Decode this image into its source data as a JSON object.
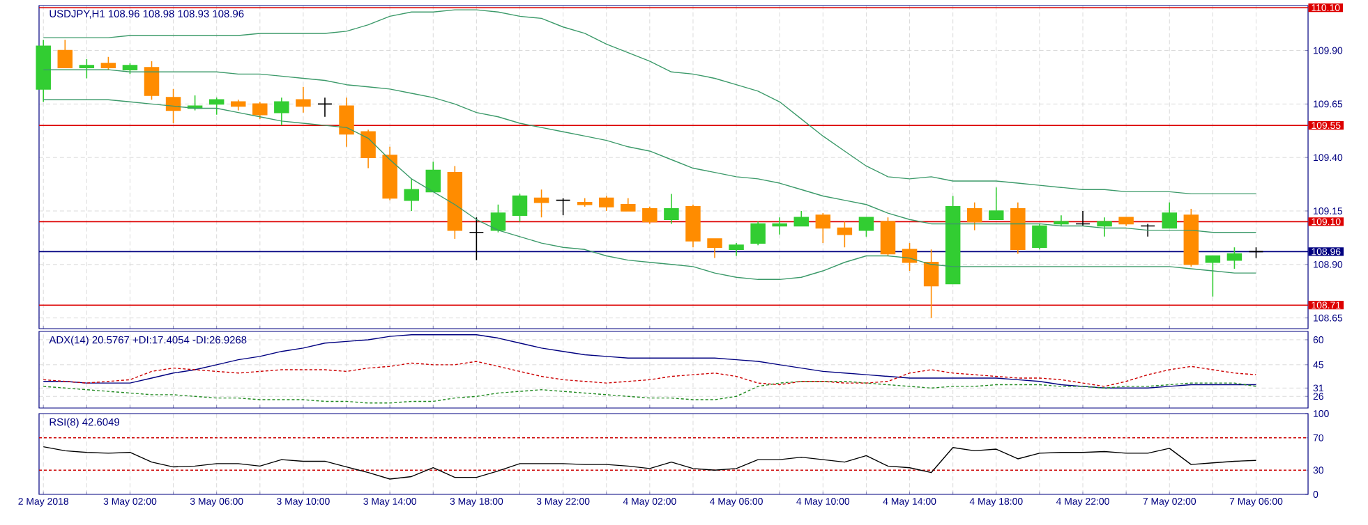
{
  "chart_data": [
    {
      "type": "candlestick",
      "title": "USDJPY,H1  108.96 108.98 108.93 108.96",
      "categories": [
        null,
        null,
        null,
        null,
        null,
        null,
        null,
        null,
        null,
        null,
        null,
        null,
        null,
        null,
        null,
        null,
        null,
        null,
        null,
        null,
        null,
        null,
        null,
        null,
        null,
        null,
        null,
        null,
        null,
        null,
        null,
        null,
        null,
        null,
        null,
        null,
        null,
        null,
        null,
        null,
        null,
        null,
        null,
        null,
        null,
        null,
        null,
        null,
        null,
        null,
        null,
        null,
        null,
        null,
        null,
        null,
        null
      ],
      "ohlc": [
        [
          109.72,
          109.95,
          109.66,
          109.92
        ],
        [
          109.9,
          109.95,
          109.82,
          109.82
        ],
        [
          109.82,
          109.86,
          109.77,
          109.83
        ],
        [
          109.84,
          109.87,
          109.81,
          109.82
        ],
        [
          109.81,
          109.84,
          109.79,
          109.83
        ],
        [
          109.82,
          109.85,
          109.67,
          109.69
        ],
        [
          109.68,
          109.72,
          109.56,
          109.62
        ],
        [
          109.63,
          109.69,
          109.62,
          109.64
        ],
        [
          109.65,
          109.68,
          109.6,
          109.67
        ],
        [
          109.66,
          109.67,
          109.62,
          109.64
        ],
        [
          109.65,
          109.66,
          109.58,
          109.6
        ],
        [
          109.61,
          109.68,
          109.55,
          109.66
        ],
        [
          109.67,
          109.73,
          109.61,
          109.64
        ],
        [
          109.65,
          109.68,
          109.59,
          109.65
        ],
        [
          109.64,
          109.68,
          109.45,
          109.51
        ],
        [
          109.52,
          109.53,
          109.35,
          109.4
        ],
        [
          109.41,
          109.45,
          109.2,
          109.21
        ],
        [
          109.2,
          109.3,
          109.15,
          109.25
        ],
        [
          109.24,
          109.38,
          109.24,
          109.34
        ],
        [
          109.33,
          109.36,
          109.02,
          109.06
        ],
        [
          109.05,
          109.12,
          108.92,
          109.05
        ],
        [
          109.06,
          109.18,
          109.05,
          109.14
        ],
        [
          109.13,
          109.23,
          109.1,
          109.22
        ],
        [
          109.21,
          109.25,
          109.12,
          109.19
        ],
        [
          109.2,
          109.21,
          109.13,
          109.2
        ],
        [
          109.19,
          109.21,
          109.17,
          109.18
        ],
        [
          109.21,
          109.22,
          109.15,
          109.17
        ],
        [
          109.18,
          109.21,
          109.15,
          109.15
        ],
        [
          109.16,
          109.17,
          109.09,
          109.1
        ],
        [
          109.11,
          109.23,
          109.09,
          109.16
        ],
        [
          109.17,
          109.18,
          108.98,
          109.01
        ],
        [
          109.02,
          109.02,
          108.93,
          108.98
        ],
        [
          108.97,
          109.0,
          108.94,
          108.99
        ],
        [
          109.0,
          109.1,
          108.99,
          109.09
        ],
        [
          109.08,
          109.12,
          109.04,
          109.09
        ],
        [
          109.08,
          109.15,
          109.08,
          109.12
        ],
        [
          109.13,
          109.14,
          109.0,
          109.07
        ],
        [
          109.07,
          109.1,
          108.98,
          109.04
        ],
        [
          109.06,
          109.12,
          109.03,
          109.12
        ],
        [
          109.1,
          109.12,
          108.94,
          108.95
        ],
        [
          108.97,
          109.0,
          108.87,
          108.91
        ],
        [
          108.91,
          108.97,
          108.65,
          108.8
        ],
        [
          108.81,
          109.22,
          108.81,
          109.17
        ],
        [
          109.16,
          109.19,
          109.06,
          109.1
        ],
        [
          109.11,
          109.26,
          109.11,
          109.15
        ],
        [
          109.16,
          109.19,
          108.95,
          108.97
        ],
        [
          108.98,
          109.09,
          108.97,
          109.08
        ],
        [
          109.09,
          109.13,
          109.08,
          109.1
        ],
        [
          109.09,
          109.15,
          109.08,
          109.09
        ],
        [
          109.08,
          109.12,
          109.03,
          109.1
        ],
        [
          109.12,
          109.12,
          109.08,
          109.09
        ],
        [
          109.08,
          109.09,
          109.03,
          109.08
        ],
        [
          109.07,
          109.19,
          109.07,
          109.14
        ],
        [
          109.13,
          109.16,
          108.89,
          108.9
        ],
        [
          108.91,
          108.94,
          108.75,
          108.94
        ],
        [
          108.92,
          108.98,
          108.88,
          108.95
        ],
        [
          108.96,
          108.98,
          108.93,
          108.96
        ]
      ],
      "colors": [
        "#32cd32",
        "#ff8c00",
        "#32cd32",
        "#ff8c00",
        "#32cd32",
        "#ff8c00",
        "#ff8c00",
        "#32cd32",
        "#32cd32",
        "#ff8c00",
        "#ff8c00",
        "#32cd32",
        "#ff8c00",
        "#000000",
        "#ff8c00",
        "#ff8c00",
        "#ff8c00",
        "#32cd32",
        "#32cd32",
        "#ff8c00",
        "#000000",
        "#32cd32",
        "#32cd32",
        "#ff8c00",
        "#000000",
        "#ff8c00",
        "#ff8c00",
        "#ff8c00",
        "#ff8c00",
        "#32cd32",
        "#ff8c00",
        "#ff8c00",
        "#32cd32",
        "#32cd32",
        "#32cd32",
        "#32cd32",
        "#ff8c00",
        "#ff8c00",
        "#32cd32",
        "#ff8c00",
        "#ff8c00",
        "#ff8c00",
        "#32cd32",
        "#ff8c00",
        "#32cd32",
        "#ff8c00",
        "#32cd32",
        "#32cd32",
        "#000000",
        "#32cd32",
        "#ff8c00",
        "#000000",
        "#32cd32",
        "#ff8c00",
        "#32cd32",
        "#32cd32",
        "#000000"
      ],
      "series": [
        {
          "type": "line",
          "color": "#3c9a6a",
          "values": [
            109.96,
            109.96,
            109.96,
            109.96,
            109.97,
            109.97,
            109.97,
            109.97,
            109.97,
            109.97,
            109.98,
            109.98,
            109.98,
            109.98,
            109.99,
            110.02,
            110.06,
            110.08,
            110.08,
            110.09,
            110.09,
            110.08,
            110.06,
            110.05,
            110.01,
            109.98,
            109.93,
            109.89,
            109.85,
            109.8,
            109.79,
            109.77,
            109.74,
            109.71,
            109.66,
            109.58,
            109.5,
            109.43,
            109.36,
            109.31,
            109.3,
            109.31,
            109.29,
            109.29,
            109.29,
            109.28,
            109.27,
            109.26,
            109.25,
            109.25,
            109.24,
            109.24,
            109.24,
            109.23,
            109.23,
            109.23,
            109.23
          ]
        },
        {
          "type": "line",
          "color": "#3c9a6a",
          "values": [
            109.81,
            109.81,
            109.81,
            109.81,
            109.8,
            109.8,
            109.8,
            109.8,
            109.8,
            109.79,
            109.79,
            109.78,
            109.77,
            109.76,
            109.74,
            109.73,
            109.72,
            109.7,
            109.68,
            109.65,
            109.61,
            109.59,
            109.56,
            109.54,
            109.52,
            109.5,
            109.48,
            109.45,
            109.43,
            109.39,
            109.35,
            109.33,
            109.31,
            109.3,
            109.28,
            109.25,
            109.22,
            109.2,
            109.18,
            109.14,
            109.11,
            109.09,
            109.09,
            109.09,
            109.09,
            109.09,
            109.09,
            109.08,
            109.08,
            109.07,
            109.07,
            109.06,
            109.06,
            109.06,
            109.05,
            109.05,
            109.05
          ]
        },
        {
          "type": "line",
          "color": "#3c9a6a",
          "values": [
            109.67,
            109.67,
            109.67,
            109.67,
            109.66,
            109.65,
            109.64,
            109.63,
            109.63,
            109.61,
            109.59,
            109.57,
            109.56,
            109.55,
            109.54,
            109.49,
            109.39,
            109.3,
            109.24,
            109.18,
            109.11,
            109.06,
            109.03,
            109.0,
            108.98,
            108.97,
            108.94,
            108.92,
            108.91,
            108.9,
            108.89,
            108.86,
            108.84,
            108.83,
            108.83,
            108.84,
            108.87,
            108.91,
            108.94,
            108.94,
            108.93,
            108.9,
            108.89,
            108.89,
            108.89,
            108.89,
            108.89,
            108.89,
            108.89,
            108.89,
            108.89,
            108.89,
            108.89,
            108.88,
            108.87,
            108.86,
            108.86
          ]
        }
      ],
      "ylim": [
        108.6,
        110.11
      ],
      "yticks": [
        {
          "value": 109.9,
          "label": "109.90"
        },
        109.65,
        {
          "value": 109.4,
          "label": "109.40"
        },
        109.15,
        {
          "value": 108.9,
          "label": "108.90"
        },
        108.65
      ],
      "ref_lines": [
        {
          "axis": "y",
          "value": 110.1,
          "label": "110.10",
          "color": "#dd0000"
        },
        {
          "axis": "y",
          "value": 109.55,
          "label": "109.55",
          "color": "#dd0000"
        },
        {
          "axis": "y",
          "value": 109.1,
          "label": "109.10",
          "color": "#dd0000"
        },
        {
          "axis": "y",
          "value": 108.71,
          "label": "108.71",
          "color": "#dd0000"
        },
        {
          "axis": "y",
          "value": 108.96,
          "label": "108.96",
          "color": "#000080"
        }
      ],
      "grid": true,
      "tick_labels": "y"
    },
    {
      "type": "line",
      "title": "ADX(14) 20.5767 +DI:17.4054 -DI:26.9268",
      "categories": [
        null,
        null,
        null,
        null,
        null,
        null,
        null,
        null,
        null,
        null,
        null,
        null,
        null,
        null,
        null,
        null,
        null,
        null,
        null,
        null,
        null,
        null,
        null,
        null,
        null,
        null,
        null,
        null,
        null,
        null,
        null,
        null,
        null,
        null,
        null,
        null,
        null,
        null,
        null,
        null,
        null,
        null,
        null,
        null,
        null,
        null,
        null,
        null,
        null,
        null,
        null,
        null,
        null,
        null,
        null,
        null,
        null
      ],
      "series": [
        {
          "color": "#000080",
          "line_style": "solid",
          "values": [
            35,
            35,
            34,
            34,
            34,
            37,
            40,
            42,
            45,
            48,
            50,
            53,
            55,
            58,
            59,
            60,
            62,
            63,
            63,
            63,
            63,
            61,
            58,
            55,
            53,
            51,
            50,
            49,
            49,
            49,
            49,
            49,
            48,
            47,
            45,
            43,
            41,
            40,
            39,
            38,
            37,
            37,
            37,
            37,
            37,
            36,
            35,
            33,
            32,
            31,
            31,
            31,
            32,
            33,
            33,
            33,
            33
          ]
        },
        {
          "color": "#228b22",
          "line_style": "dotted",
          "values": [
            32,
            31,
            30,
            29,
            28,
            27,
            27,
            26,
            25,
            25,
            24,
            24,
            24,
            23,
            23,
            22,
            22,
            23,
            23,
            25,
            26,
            28,
            29,
            30,
            29,
            28,
            27,
            26,
            25,
            25,
            24,
            24,
            26,
            32,
            34,
            35,
            35,
            35,
            34,
            33,
            32,
            31,
            32,
            32,
            33,
            33,
            33,
            32,
            32,
            31,
            32,
            32,
            33,
            34,
            34,
            34,
            32
          ]
        },
        {
          "color": "#cc0000",
          "line_style": "dotted",
          "values": [
            36,
            35,
            34,
            35,
            36,
            41,
            43,
            42,
            41,
            40,
            41,
            42,
            42,
            42,
            41,
            43,
            44,
            46,
            45,
            45,
            47,
            44,
            41,
            38,
            36,
            35,
            34,
            35,
            36,
            38,
            39,
            40,
            38,
            34,
            33,
            35,
            35,
            34,
            34,
            35,
            40,
            42,
            40,
            39,
            38,
            37,
            37,
            36,
            34,
            32,
            35,
            39,
            42,
            44,
            42,
            40,
            39
          ]
        }
      ],
      "ylim": [
        19,
        65
      ],
      "yticks": [
        60,
        45,
        31,
        26
      ],
      "grid": true,
      "tick_labels": "y"
    },
    {
      "type": "line",
      "title": "RSI(8) 42.6049",
      "categories": [
        "2 May 2018",
        null,
        null,
        null,
        "3 May 02:00",
        null,
        null,
        null,
        "3 May 06:00",
        null,
        null,
        null,
        "3 May 10:00",
        null,
        null,
        null,
        "3 May 14:00",
        null,
        null,
        null,
        "3 May 18:00",
        null,
        null,
        null,
        "3 May 22:00",
        null,
        null,
        null,
        "4 May 02:00",
        null,
        null,
        null,
        "4 May 06:00",
        null,
        null,
        null,
        "4 May 10:00",
        null,
        null,
        null,
        "4 May 14:00",
        null,
        null,
        null,
        "4 May 18:00",
        null,
        null,
        null,
        "4 May 22:00",
        null,
        null,
        null,
        "7 May 02:00",
        null,
        null,
        null,
        "7 May 06:00"
      ],
      "series": [
        {
          "color": "#000000",
          "line_style": "solid",
          "values": [
            59,
            54,
            52,
            51,
            52,
            40,
            34,
            35,
            38,
            38,
            35,
            43,
            41,
            41,
            34,
            27,
            19,
            22,
            33,
            21,
            21,
            29,
            38,
            38,
            38,
            37,
            37,
            35,
            32,
            40,
            32,
            30,
            32,
            43,
            43,
            46,
            43,
            40,
            48,
            35,
            33,
            27,
            58,
            54,
            56,
            44,
            51,
            52,
            52,
            53,
            51,
            51,
            57,
            37,
            39,
            41,
            42
          ]
        }
      ],
      "ylim": [
        0,
        100
      ],
      "yticks": [
        100,
        70,
        30,
        0
      ],
      "ref_lines": [
        {
          "axis": "y",
          "value": 70,
          "color": "#cc0000",
          "line_style": "dotted"
        },
        {
          "axis": "y",
          "value": 30,
          "color": "#cc0000",
          "line_style": "dotted"
        }
      ],
      "grid": "x"
    }
  ]
}
